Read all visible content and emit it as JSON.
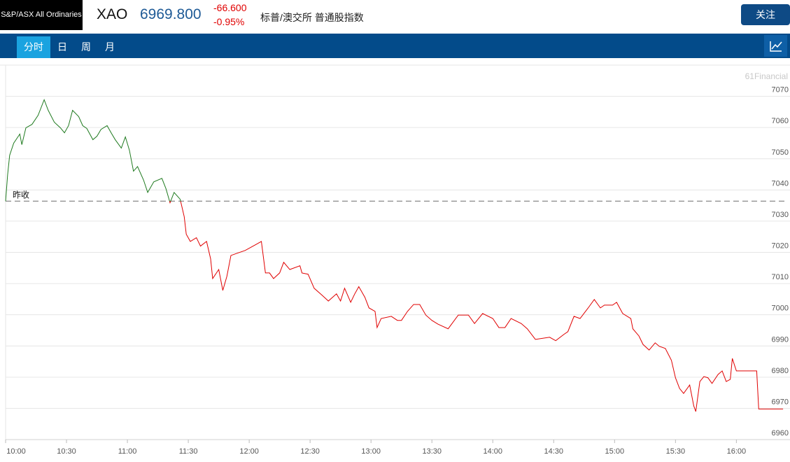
{
  "header": {
    "index_name": "S&P/ASX All Ordinaries",
    "symbol": "XAO",
    "price": "6969.800",
    "change": "-66.600",
    "change_pct": "-0.95%",
    "description": "标普/澳交所 普通股指数",
    "follow_button": "关注"
  },
  "tabs": [
    "分时",
    "日",
    "周",
    "月"
  ],
  "active_tab": 0,
  "chart_data": {
    "type": "line",
    "watermark": "61Financial",
    "baseline_label": "昨收",
    "prev_close": 7036.4,
    "up_color": "#1f7a1f",
    "down_color": "#e00000",
    "x": [
      "10:00",
      "10:01",
      "10:02",
      "10:04",
      "10:07",
      "10:08",
      "10:10",
      "10:13",
      "10:16",
      "10:19",
      "10:21",
      "10:24",
      "10:27",
      "10:29",
      "10:31",
      "10:33",
      "10:36",
      "10:38",
      "10:40",
      "10:43",
      "10:45",
      "10:47",
      "10:50",
      "10:52",
      "10:54",
      "10:57",
      "10:59",
      "11:01",
      "11:03",
      "11:05",
      "11:08",
      "11:10",
      "11:13",
      "11:17",
      "11:19",
      "11:21",
      "11:23",
      "11:26",
      "11:28",
      "11:29",
      "11:31",
      "11:34",
      "11:36",
      "11:39",
      "11:41",
      "11:42",
      "11:45",
      "11:47",
      "11:49",
      "11:51",
      "11:54",
      "11:58",
      "12:03",
      "12:06",
      "12:08",
      "12:10",
      "12:12",
      "12:15",
      "12:17",
      "12:20",
      "12:25",
      "12:26",
      "12:29",
      "12:32",
      "12:36",
      "12:39",
      "12:43",
      "12:45",
      "12:47",
      "12:50",
      "12:52",
      "12:54",
      "12:57",
      "12:59",
      "13:02",
      "13:03",
      "13:05",
      "13:10",
      "13:13",
      "13:15",
      "13:18",
      "13:21",
      "13:24",
      "13:27",
      "13:30",
      "13:33",
      "13:38",
      "13:43",
      "13:48",
      "13:51",
      "13:55",
      "14:00",
      "14:03",
      "14:06",
      "14:09",
      "14:14",
      "14:17",
      "14:21",
      "14:28",
      "14:31",
      "14:35",
      "14:37",
      "14:40",
      "14:43",
      "14:47",
      "14:50",
      "14:53",
      "14:55",
      "14:59",
      "15:01",
      "15:04",
      "15:08",
      "15:09",
      "15:12",
      "15:14",
      "15:17",
      "15:20",
      "15:22",
      "15:25",
      "15:28",
      "15:30",
      "15:32",
      "15:34",
      "15:37",
      "15:39",
      "15:40",
      "15:42",
      "15:44",
      "15:46",
      "15:48",
      "15:51",
      "15:53",
      "15:55",
      "15:57",
      "15:58",
      "16:00",
      "16:10",
      "16:11",
      "16:23"
    ],
    "values": [
      7036.4,
      7044.9,
      7051.1,
      7055.0,
      7057.9,
      7054.5,
      7059.9,
      7061.0,
      7063.9,
      7068.9,
      7065.5,
      7061.7,
      7059.9,
      7058.3,
      7060.6,
      7065.5,
      7063.5,
      7060.6,
      7059.7,
      7056.1,
      7057.2,
      7059.4,
      7060.6,
      7058.3,
      7056.1,
      7053.4,
      7057.0,
      7052.7,
      7046.0,
      7047.5,
      7043.1,
      7039.2,
      7042.6,
      7043.7,
      7040.4,
      7035.9,
      7039.2,
      7037.0,
      7031.4,
      7025.8,
      7023.5,
      7024.7,
      7022.0,
      7023.5,
      7017.9,
      7011.6,
      7014.5,
      7007.8,
      7012.3,
      7019.0,
      7019.7,
      7020.6,
      7022.4,
      7023.5,
      7013.4,
      7013.4,
      7011.6,
      7013.4,
      7016.8,
      7014.5,
      7015.7,
      7013.4,
      7013.0,
      7008.5,
      7006.2,
      7004.4,
      7006.7,
      7004.4,
      7008.5,
      7004.0,
      7006.7,
      7009.0,
      7005.6,
      7002.2,
      7001.1,
      6995.9,
      6998.8,
      6999.5,
      6998.2,
      6998.2,
      7001.1,
      7003.3,
      7003.3,
      6999.9,
      6998.2,
      6997.0,
      6995.5,
      6999.9,
      6999.9,
      6997.2,
      7000.4,
      6998.8,
      6995.9,
      6995.9,
      6998.8,
      6997.2,
      6995.5,
      6992.1,
      6992.8,
      6991.7,
      6993.7,
      6994.6,
      6999.5,
      6998.8,
      7002.2,
      7004.9,
      7002.2,
      7003.1,
      7003.1,
      7004.0,
      7000.4,
      6998.8,
      6995.5,
      6993.2,
      6990.5,
      6988.7,
      6991.0,
      6989.9,
      6989.2,
      6985.4,
      6979.8,
      6976.4,
      6974.8,
      6977.5,
      6970.8,
      6969.0,
      6978.6,
      6980.2,
      6979.8,
      6978.0,
      6980.9,
      6982.0,
      6978.6,
      6979.3,
      6986.0,
      6982.0,
      6982.0,
      6969.8,
      6969.8
    ],
    "xlim": [
      "10:00",
      "16:24"
    ],
    "xticks": [
      "10:00",
      "10:30",
      "11:00",
      "11:30",
      "12:00",
      "12:30",
      "13:00",
      "13:30",
      "14:00",
      "14:30",
      "15:00",
      "15:30",
      "16:00"
    ],
    "ylim": [
      6960,
      7080
    ],
    "yticks": [
      6960,
      6970,
      6980,
      6990,
      7000,
      7010,
      7020,
      7030,
      7040,
      7050,
      7060,
      7070
    ],
    "grid": true
  }
}
